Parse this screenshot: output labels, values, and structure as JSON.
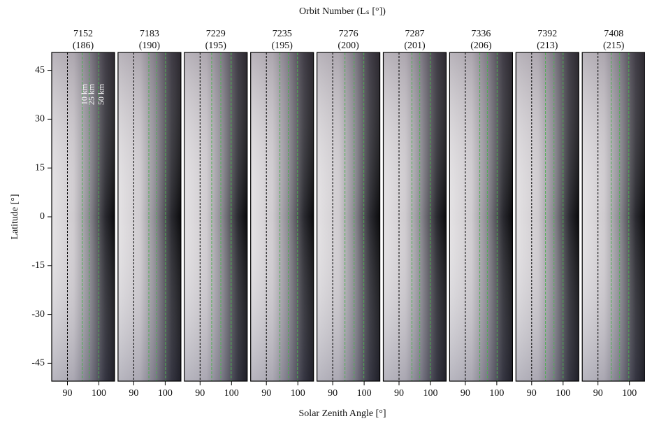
{
  "chart_data": {
    "type": "image-strips",
    "title": "Orbit Number (Lₛ [°])",
    "x_label": "Solar Zenith Angle [°]",
    "y_label": "Latitude [°]",
    "categories": [
      "7152",
      "7183",
      "7229",
      "7235",
      "7276",
      "7287",
      "7336",
      "7392",
      "7408"
    ],
    "values": [
      186,
      190,
      195,
      195,
      200,
      201,
      206,
      213,
      215
    ],
    "value_labels": [
      "(186)",
      "(190)",
      "(195)",
      "(195)",
      "(200)",
      "(201)",
      "(206)",
      "(213)",
      "(215)"
    ],
    "xlim": [
      85,
      105
    ],
    "xticks": [
      90,
      100
    ],
    "ylim": [
      -50.5,
      50.5
    ],
    "yticks": [
      -45,
      -30,
      -15,
      0,
      15,
      30,
      45
    ],
    "terminator": 90,
    "terminator_color": "#000000",
    "series": [
      {
        "name": "10 km",
        "color": "#4caf50",
        "values": [
          94.7,
          94.8,
          93.7,
          94.3,
          93.9,
          94.1,
          94.6,
          94.4,
          94.2
        ]
      },
      {
        "name": "25 km",
        "color": "#4caf50",
        "values": [
          96.9,
          97.3,
          96.6,
          97.0,
          96.8,
          96.6,
          97.0,
          97.1,
          96.9
        ]
      },
      {
        "name": "50 km",
        "color": "#4caf50",
        "values": [
          100.0,
          100.1,
          99.9,
          99.9,
          99.9,
          99.9,
          100.1,
          100.0,
          99.8
        ]
      }
    ]
  }
}
